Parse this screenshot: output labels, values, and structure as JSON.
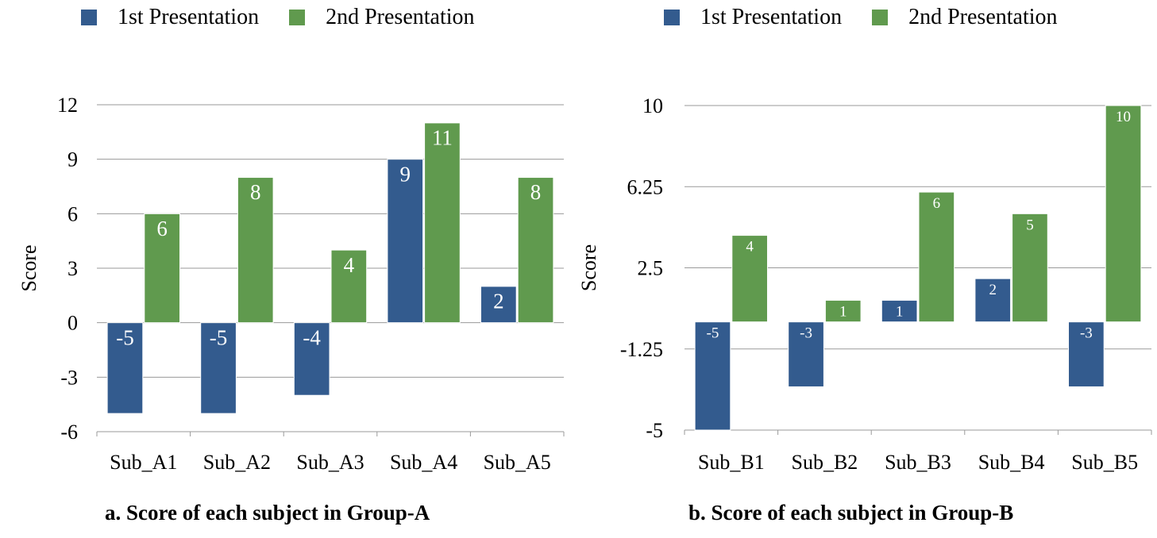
{
  "legend": {
    "items": [
      {
        "label": "1st Presentation",
        "color": "#335B8E"
      },
      {
        "label": "2nd Presentation",
        "color": "#609A4E"
      }
    ]
  },
  "chart_data": [
    {
      "type": "bar",
      "caption": "a. Score of each subject in Group-A",
      "ylabel": "Score",
      "categories": [
        "Sub_A1",
        "Sub_A2",
        "Sub_A3",
        "Sub_A4",
        "Sub_A5"
      ],
      "series": [
        {
          "name": "1st Presentation",
          "values": [
            -5,
            -5,
            -4,
            9,
            2
          ],
          "color": "#335B8E"
        },
        {
          "name": "2nd Presentation",
          "values": [
            6,
            8,
            4,
            11,
            8
          ],
          "color": "#609A4E"
        }
      ],
      "yticks": [
        "12",
        "9",
        "6",
        "3",
        "0",
        "-3",
        "-6"
      ],
      "ylim": [
        -6,
        12
      ],
      "grid": true,
      "legend_position": "top"
    },
    {
      "type": "bar",
      "caption": "b. Score of each subject in Group-B",
      "ylabel": "Score",
      "categories": [
        "Sub_B1",
        "Sub_B2",
        "Sub_B3",
        "Sub_B4",
        "Sub_B5"
      ],
      "series": [
        {
          "name": "1st Presentation",
          "values": [
            -5,
            -3,
            1,
            2,
            -3
          ],
          "color": "#335B8E"
        },
        {
          "name": "2nd Presentation",
          "values": [
            4,
            1,
            6,
            5,
            10
          ],
          "color": "#609A4E"
        }
      ],
      "yticks": [
        "10",
        "6.25",
        "2.5",
        "-1.25",
        "-5"
      ],
      "ylim": [
        -5,
        10
      ],
      "grid": true,
      "legend_position": "top"
    }
  ]
}
